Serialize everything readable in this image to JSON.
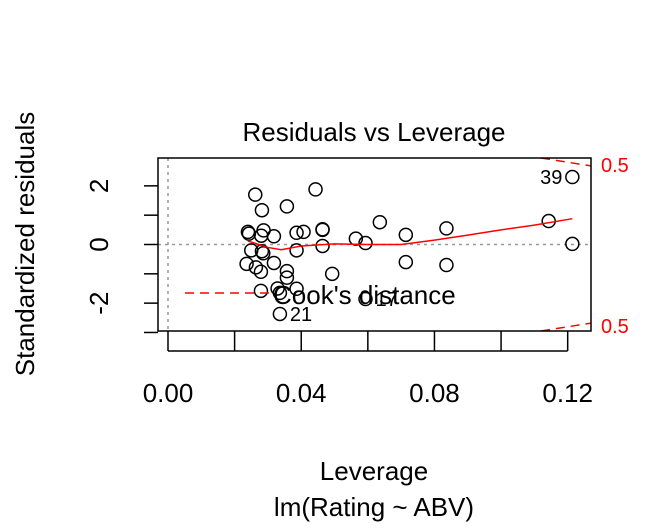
{
  "chart_data": {
    "type": "scatter",
    "title": "Residuals vs Leverage",
    "xlabel": "Leverage",
    "sub_xlabel": "lm(Rating ~ ABV)",
    "ylabel": "Standardized residuals",
    "xlim": [
      -0.003,
      0.127
    ],
    "ylim": [
      -2.95,
      2.95
    ],
    "x_ticks": [
      0.0,
      0.02,
      0.04,
      0.06,
      0.08,
      0.1,
      0.12
    ],
    "x_tick_labels": [
      "0.00",
      "0.04",
      "0.08",
      "0.12"
    ],
    "x_tick_label_values": [
      0.0,
      0.04,
      0.08,
      0.12
    ],
    "y_ticks": [
      -3,
      -2,
      -1,
      0,
      1,
      2
    ],
    "y_tick_labels": [
      "-2",
      "0",
      "2"
    ],
    "y_tick_label_values": [
      -2,
      0,
      2
    ],
    "reference_lines": {
      "h": 0,
      "v": 0
    },
    "points": [
      {
        "x": 0.0262,
        "y": 1.7
      },
      {
        "x": 0.0443,
        "y": 1.88
      },
      {
        "x": 0.0282,
        "y": 1.17
      },
      {
        "x": 0.0357,
        "y": 1.3
      },
      {
        "x": 0.024,
        "y": 0.43
      },
      {
        "x": 0.0243,
        "y": 0.37
      },
      {
        "x": 0.0287,
        "y": 0.48
      },
      {
        "x": 0.028,
        "y": 0.3
      },
      {
        "x": 0.0318,
        "y": 0.28
      },
      {
        "x": 0.0386,
        "y": 0.4
      },
      {
        "x": 0.0407,
        "y": 0.43
      },
      {
        "x": 0.0464,
        "y": 0.5
      },
      {
        "x": 0.0464,
        "y": 0.52
      },
      {
        "x": 0.0636,
        "y": 0.76
      },
      {
        "x": 0.0564,
        "y": 0.2
      },
      {
        "x": 0.0593,
        "y": 0.05
      },
      {
        "x": 0.0714,
        "y": 0.33
      },
      {
        "x": 0.0836,
        "y": 0.55
      },
      {
        "x": 0.1143,
        "y": 0.8
      },
      {
        "x": 0.1214,
        "y": 0.02
      },
      {
        "x": 0.025,
        "y": -0.2
      },
      {
        "x": 0.0282,
        "y": -0.23
      },
      {
        "x": 0.0286,
        "y": -0.3
      },
      {
        "x": 0.0386,
        "y": -0.2
      },
      {
        "x": 0.0464,
        "y": -0.05
      },
      {
        "x": 0.0236,
        "y": -0.66
      },
      {
        "x": 0.0264,
        "y": -0.78
      },
      {
        "x": 0.0318,
        "y": -0.63
      },
      {
        "x": 0.0279,
        "y": -0.93
      },
      {
        "x": 0.0357,
        "y": -0.91
      },
      {
        "x": 0.0357,
        "y": -1.13
      },
      {
        "x": 0.0493,
        "y": -1.0
      },
      {
        "x": 0.0714,
        "y": -0.6
      },
      {
        "x": 0.0836,
        "y": -0.7
      },
      {
        "x": 0.0279,
        "y": -1.58
      },
      {
        "x": 0.0329,
        "y": -1.5
      },
      {
        "x": 0.0336,
        "y": -1.65
      },
      {
        "x": 0.0386,
        "y": -1.51
      },
      {
        "x": 0.0336,
        "y": -2.37
      },
      {
        "x": 0.0593,
        "y": -1.86
      },
      {
        "x": 0.1214,
        "y": 2.3
      }
    ],
    "point_labels": [
      {
        "text": "39",
        "x": 0.1214,
        "y": 2.3,
        "side": "left"
      },
      {
        "text": "21",
        "x": 0.0336,
        "y": -2.37,
        "side": "right"
      },
      {
        "text": "17",
        "x": 0.0593,
        "y": -1.86,
        "side": "right"
      }
    ],
    "smooth_line": {
      "x": [
        0.024,
        0.03,
        0.034,
        0.04,
        0.05,
        0.06,
        0.07,
        0.08,
        0.09,
        0.1,
        0.11,
        0.1214
      ],
      "y": [
        0.12,
        -0.1,
        -0.18,
        -0.05,
        0.02,
        0.0,
        0.0,
        0.15,
        0.32,
        0.5,
        0.66,
        0.88
      ],
      "color": "#ff0000"
    },
    "cooks_distance": {
      "level": 0.5,
      "label": "0.5",
      "upper": {
        "x": [
          0.112,
          0.127
        ],
        "y": [
          2.95,
          2.68
        ]
      },
      "lower": {
        "x": [
          0.112,
          0.127
        ],
        "y": [
          -2.95,
          -2.68
        ]
      },
      "color": "#ff0000"
    },
    "legend": {
      "label": "Cook's distance",
      "position": "bottom-left",
      "color": "#ff0000"
    },
    "grid": false,
    "point_color": "#000000",
    "reference_line_color": "#999999"
  }
}
